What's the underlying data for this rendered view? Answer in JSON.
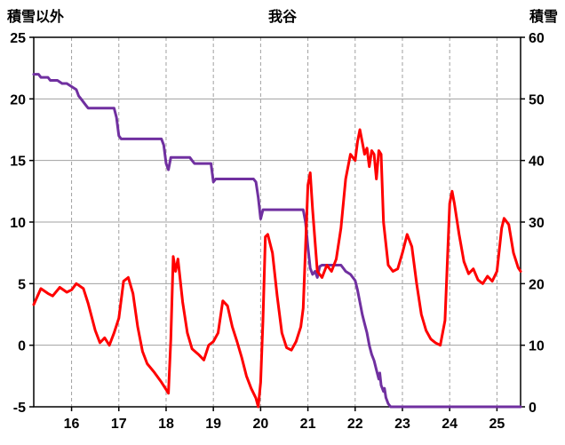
{
  "header": {
    "left_axis_title": "積雪以外",
    "title": "我谷",
    "right_axis_title": "積雪"
  },
  "colors": {
    "red_series": "#FF0000",
    "purple_series": "#7030A0",
    "grid": "#A0A0A0",
    "frame": "#000000",
    "text": "#000000"
  },
  "chart_data": {
    "type": "line",
    "title": "我谷",
    "x_range": [
      15.2,
      25.5
    ],
    "x_ticks": [
      16,
      17,
      18,
      19,
      20,
      21,
      22,
      23,
      24,
      25
    ],
    "left_axis": {
      "label": "積雪以外",
      "range": [
        -5,
        25
      ],
      "ticks": [
        -5,
        0,
        5,
        10,
        15,
        20,
        25
      ]
    },
    "right_axis": {
      "label": "積雪",
      "range": [
        0,
        60
      ],
      "ticks": [
        0,
        10,
        20,
        30,
        40,
        50,
        60
      ]
    },
    "grid": {
      "vertical": "dashed",
      "horizontal": "solid",
      "legend": "none"
    },
    "series": [
      {
        "name": "積雪",
        "axis": "right",
        "color": "#7030A0",
        "points": [
          [
            15.2,
            54
          ],
          [
            15.3,
            54
          ],
          [
            15.35,
            53.5
          ],
          [
            15.5,
            53.5
          ],
          [
            15.55,
            53
          ],
          [
            15.7,
            53
          ],
          [
            15.8,
            52.5
          ],
          [
            15.9,
            52.5
          ],
          [
            16.0,
            52
          ],
          [
            16.1,
            51.5
          ],
          [
            16.15,
            50.5
          ],
          [
            16.2,
            50
          ],
          [
            16.3,
            49
          ],
          [
            16.35,
            48.5
          ],
          [
            16.9,
            48.5
          ],
          [
            16.95,
            47
          ],
          [
            17.0,
            44
          ],
          [
            17.05,
            43.5
          ],
          [
            17.9,
            43.5
          ],
          [
            17.95,
            42.5
          ],
          [
            18.0,
            39.5
          ],
          [
            18.05,
            38.5
          ],
          [
            18.1,
            40.5
          ],
          [
            18.5,
            40.5
          ],
          [
            18.55,
            40
          ],
          [
            18.6,
            39.5
          ],
          [
            18.95,
            39.5
          ],
          [
            19.0,
            36.5
          ],
          [
            19.05,
            37
          ],
          [
            19.85,
            37
          ],
          [
            19.9,
            36.5
          ],
          [
            19.95,
            34
          ],
          [
            20.0,
            30.5
          ],
          [
            20.05,
            32
          ],
          [
            20.9,
            32
          ],
          [
            20.95,
            30
          ],
          [
            21.0,
            26
          ],
          [
            21.05,
            22.5
          ],
          [
            21.1,
            21.5
          ],
          [
            21.15,
            22
          ],
          [
            21.2,
            21
          ],
          [
            21.25,
            22.8
          ],
          [
            21.3,
            23
          ],
          [
            21.7,
            23
          ],
          [
            21.75,
            22.5
          ],
          [
            21.8,
            22
          ],
          [
            21.9,
            21.5
          ],
          [
            22.0,
            20.5
          ],
          [
            22.05,
            19
          ],
          [
            22.1,
            17
          ],
          [
            22.15,
            15
          ],
          [
            22.2,
            13.5
          ],
          [
            22.25,
            12
          ],
          [
            22.3,
            10
          ],
          [
            22.35,
            8.5
          ],
          [
            22.4,
            7.5
          ],
          [
            22.45,
            6
          ],
          [
            22.5,
            4.5
          ],
          [
            22.52,
            5.5
          ],
          [
            22.55,
            3.5
          ],
          [
            22.6,
            2.5
          ],
          [
            22.62,
            3
          ],
          [
            22.65,
            1.5
          ],
          [
            22.7,
            0.5
          ],
          [
            22.75,
            0
          ],
          [
            25.5,
            0
          ]
        ]
      },
      {
        "name": "積雪以外",
        "axis": "left",
        "color": "#FF0000",
        "points": [
          [
            15.2,
            3.3
          ],
          [
            15.35,
            4.6
          ],
          [
            15.5,
            4.2
          ],
          [
            15.6,
            4.0
          ],
          [
            15.75,
            4.7
          ],
          [
            15.9,
            4.3
          ],
          [
            16.0,
            4.5
          ],
          [
            16.1,
            5.0
          ],
          [
            16.25,
            4.6
          ],
          [
            16.35,
            3.4
          ],
          [
            16.5,
            1.2
          ],
          [
            16.6,
            0.2
          ],
          [
            16.7,
            0.6
          ],
          [
            16.8,
            0.0
          ],
          [
            16.9,
            1.0
          ],
          [
            17.0,
            2.2
          ],
          [
            17.1,
            5.2
          ],
          [
            17.2,
            5.5
          ],
          [
            17.3,
            4.2
          ],
          [
            17.4,
            1.5
          ],
          [
            17.5,
            -0.5
          ],
          [
            17.6,
            -1.5
          ],
          [
            17.75,
            -2.2
          ],
          [
            17.9,
            -3.0
          ],
          [
            18.0,
            -3.6
          ],
          [
            18.05,
            -3.9
          ],
          [
            18.1,
            0.5
          ],
          [
            18.15,
            7.2
          ],
          [
            18.2,
            6.0
          ],
          [
            18.25,
            7.0
          ],
          [
            18.35,
            3.5
          ],
          [
            18.45,
            1.0
          ],
          [
            18.55,
            -0.3
          ],
          [
            18.7,
            -0.8
          ],
          [
            18.8,
            -1.2
          ],
          [
            18.9,
            0.0
          ],
          [
            19.0,
            0.3
          ],
          [
            19.1,
            1.0
          ],
          [
            19.2,
            3.6
          ],
          [
            19.3,
            3.2
          ],
          [
            19.4,
            1.5
          ],
          [
            19.5,
            0.3
          ],
          [
            19.6,
            -1.0
          ],
          [
            19.7,
            -2.5
          ],
          [
            19.8,
            -3.5
          ],
          [
            19.9,
            -4.3
          ],
          [
            19.95,
            -5.0
          ],
          [
            20.0,
            -3.0
          ],
          [
            20.05,
            2.0
          ],
          [
            20.1,
            8.8
          ],
          [
            20.15,
            9.0
          ],
          [
            20.25,
            7.5
          ],
          [
            20.35,
            4.0
          ],
          [
            20.45,
            1.0
          ],
          [
            20.55,
            -0.2
          ],
          [
            20.65,
            -0.4
          ],
          [
            20.75,
            0.3
          ],
          [
            20.85,
            1.5
          ],
          [
            20.9,
            3.0
          ],
          [
            21.0,
            13.0
          ],
          [
            21.05,
            14.0
          ],
          [
            21.1,
            11.0
          ],
          [
            21.2,
            6.0
          ],
          [
            21.3,
            5.5
          ],
          [
            21.4,
            6.5
          ],
          [
            21.5,
            6.0
          ],
          [
            21.6,
            7.0
          ],
          [
            21.7,
            9.5
          ],
          [
            21.8,
            13.5
          ],
          [
            21.9,
            15.5
          ],
          [
            22.0,
            15.0
          ],
          [
            22.05,
            16.5
          ],
          [
            22.1,
            17.5
          ],
          [
            22.15,
            16.5
          ],
          [
            22.2,
            15.5
          ],
          [
            22.25,
            16.0
          ],
          [
            22.3,
            14.5
          ],
          [
            22.35,
            15.8
          ],
          [
            22.4,
            15.5
          ],
          [
            22.45,
            13.5
          ],
          [
            22.5,
            15.8
          ],
          [
            22.55,
            15.5
          ],
          [
            22.6,
            10.0
          ],
          [
            22.7,
            6.5
          ],
          [
            22.8,
            6.0
          ],
          [
            22.9,
            6.2
          ],
          [
            23.0,
            7.5
          ],
          [
            23.1,
            9.0
          ],
          [
            23.2,
            8.0
          ],
          [
            23.3,
            5.0
          ],
          [
            23.4,
            2.5
          ],
          [
            23.5,
            1.2
          ],
          [
            23.6,
            0.5
          ],
          [
            23.7,
            0.2
          ],
          [
            23.8,
            0.0
          ],
          [
            23.9,
            2.0
          ],
          [
            24.0,
            11.5
          ],
          [
            24.05,
            12.5
          ],
          [
            24.1,
            11.5
          ],
          [
            24.2,
            9.0
          ],
          [
            24.3,
            6.8
          ],
          [
            24.4,
            5.8
          ],
          [
            24.5,
            6.2
          ],
          [
            24.6,
            5.3
          ],
          [
            24.7,
            5.0
          ],
          [
            24.8,
            5.6
          ],
          [
            24.9,
            5.2
          ],
          [
            25.0,
            6.0
          ],
          [
            25.1,
            9.5
          ],
          [
            25.15,
            10.3
          ],
          [
            25.25,
            9.8
          ],
          [
            25.35,
            7.5
          ],
          [
            25.45,
            6.3
          ],
          [
            25.5,
            6.0
          ]
        ]
      }
    ]
  }
}
